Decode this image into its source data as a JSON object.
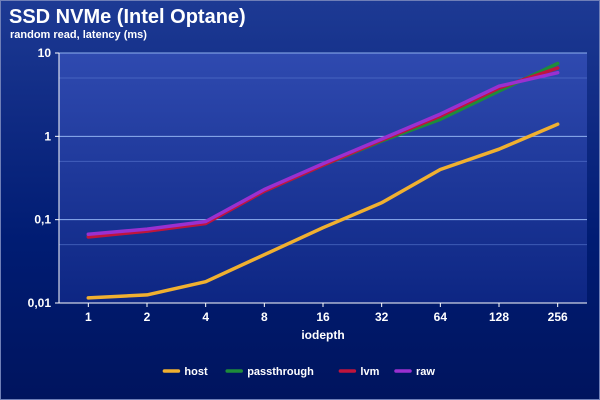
{
  "title": "SSD NVMe (Intel Optane)",
  "subtitle": "random read, latency (ms)",
  "chart_data": {
    "type": "line",
    "title": "SSD NVMe (Intel Optane)",
    "subtitle": "random read, latency (ms)",
    "xlabel": "iodepth",
    "ylabel": "",
    "y_scale": "log",
    "ylim": [
      0.01,
      10
    ],
    "y_ticks": [
      "0,01",
      "0,1",
      "1",
      "10"
    ],
    "categories": [
      "1",
      "2",
      "4",
      "8",
      "16",
      "32",
      "64",
      "128",
      "256"
    ],
    "grid": "horizontal",
    "legend_position": "bottom",
    "series": [
      {
        "name": "host",
        "color": "#f0b030",
        "values": [
          0.0115,
          0.0125,
          0.018,
          0.038,
          0.08,
          0.16,
          0.4,
          0.7,
          1.4
        ]
      },
      {
        "name": "passthrough",
        "color": "#1e8c3a",
        "values": [
          0.063,
          0.073,
          0.092,
          0.22,
          0.45,
          0.88,
          1.6,
          3.5,
          7.5
        ]
      },
      {
        "name": "lvm",
        "color": "#c0143c",
        "values": [
          0.062,
          0.073,
          0.09,
          0.22,
          0.45,
          0.9,
          1.75,
          3.8,
          6.6
        ]
      },
      {
        "name": "raw",
        "color": "#9a30d0",
        "values": [
          0.067,
          0.077,
          0.095,
          0.23,
          0.47,
          0.93,
          1.85,
          4.0,
          5.8
        ]
      }
    ]
  }
}
